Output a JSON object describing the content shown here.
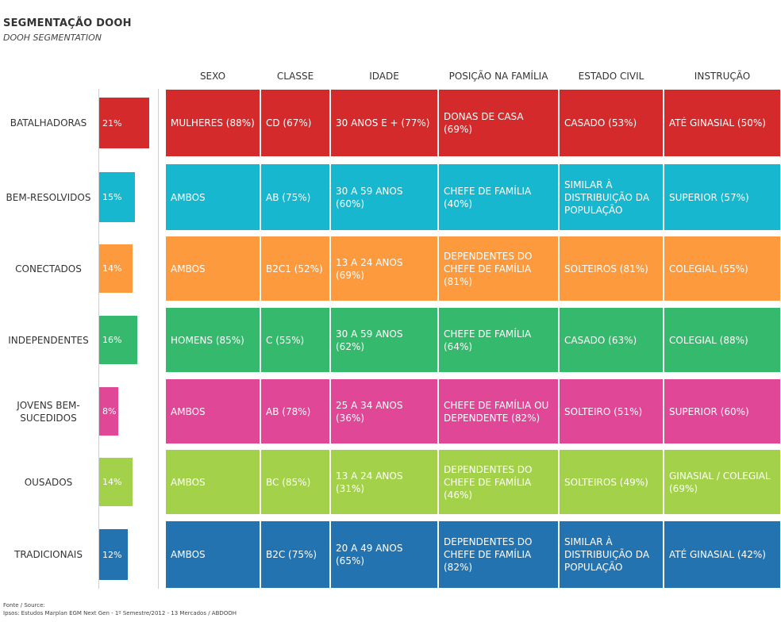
{
  "title": "SEGMENTAÇÃO DOOH",
  "subtitle": "DOOH SEGMENTATION",
  "footer": {
    "line1": "Fonte / Source:",
    "line2": "Ipsos: Estudos Marplan EGM Next Gen - 1º Semestre/2012 - 13 Mercados / ABDOOH"
  },
  "chart_data": {
    "type": "table",
    "columns": [
      "SEXO",
      "CLASSE",
      "IDADE",
      "POSIÇÃO NA FAMÍLIA",
      "ESTADO CIVIL",
      "INSTRUÇÃO"
    ],
    "bar_xlim": [
      0,
      100
    ],
    "segments": [
      {
        "name": "BATALHADORAS",
        "share": 21,
        "share_label": "21%",
        "color": "#d42a2b",
        "cells": [
          "MULHERES (88%)",
          "CD (67%)",
          "30 ANOS E + (77%)",
          "DONAS DE CASA (69%)",
          "CASADO (53%)",
          "ATÉ GINASIAL (50%)"
        ]
      },
      {
        "name": "BEM-RESOLVIDOS",
        "share": 15,
        "share_label": "15%",
        "color": "#16b7cf",
        "cells": [
          "AMBOS",
          "AB (75%)",
          "30 A 59 ANOS (60%)",
          "CHEFE DE FAMÍLIA (40%)",
          "SIMILAR À DISTRIBUIÇÃO DA POPULAÇÃO",
          "SUPERIOR (57%)"
        ]
      },
      {
        "name": "CONECTADOS",
        "share": 14,
        "share_label": "14%",
        "color": "#fd9a3e",
        "cells": [
          "AMBOS",
          "B2C1 (52%)",
          "13 A 24 ANOS (69%)",
          "DEPENDENTES DO CHEFE DE FAMÍLIA (81%)",
          "SOLTEIROS (81%)",
          "COLEGIAL (55%)"
        ]
      },
      {
        "name": "INDEPENDENTES",
        "share": 16,
        "share_label": "16%",
        "color": "#35b96d",
        "cells": [
          "HOMENS (85%)",
          "C (55%)",
          "30 A 59 ANOS (62%)",
          "CHEFE DE FAMÍLIA (64%)",
          "CASADO (63%)",
          "COLEGIAL (88%)"
        ]
      },
      {
        "name": "JOVENS BEM-SUCEDIDOS",
        "share": 8,
        "share_label": "8%",
        "color": "#e04797",
        "cells": [
          "AMBOS",
          "AB (78%)",
          "25 A 34 ANOS (36%)",
          "CHEFE DE FAMÍLIA OU DEPENDENTE (82%)",
          "SOLTEIRO (51%)",
          "SUPERIOR (60%)"
        ]
      },
      {
        "name": "OUSADOS",
        "share": 14,
        "share_label": "14%",
        "color": "#a3d24a",
        "cells": [
          "AMBOS",
          "BC (85%)",
          "13 A 24 ANOS (31%)",
          "DEPENDENTES DO CHEFE DE FAMÍLIA (46%)",
          "SOLTEIROS (49%)",
          "GINASIAL / COLEGIAL (69%)"
        ]
      },
      {
        "name": "TRADICIONAIS",
        "share": 12,
        "share_label": "12%",
        "color": "#2473b1",
        "cells": [
          "AMBOS",
          "B2C (75%)",
          "20 A 49 ANOS (65%)",
          "DEPENDENTES DO CHEFE DE FAMÍLIA (82%)",
          "SIMILAR À DISTRIBUIÇÃO DA POPULAÇÃO",
          "ATÉ GINASIAL (42%)"
        ]
      }
    ]
  }
}
